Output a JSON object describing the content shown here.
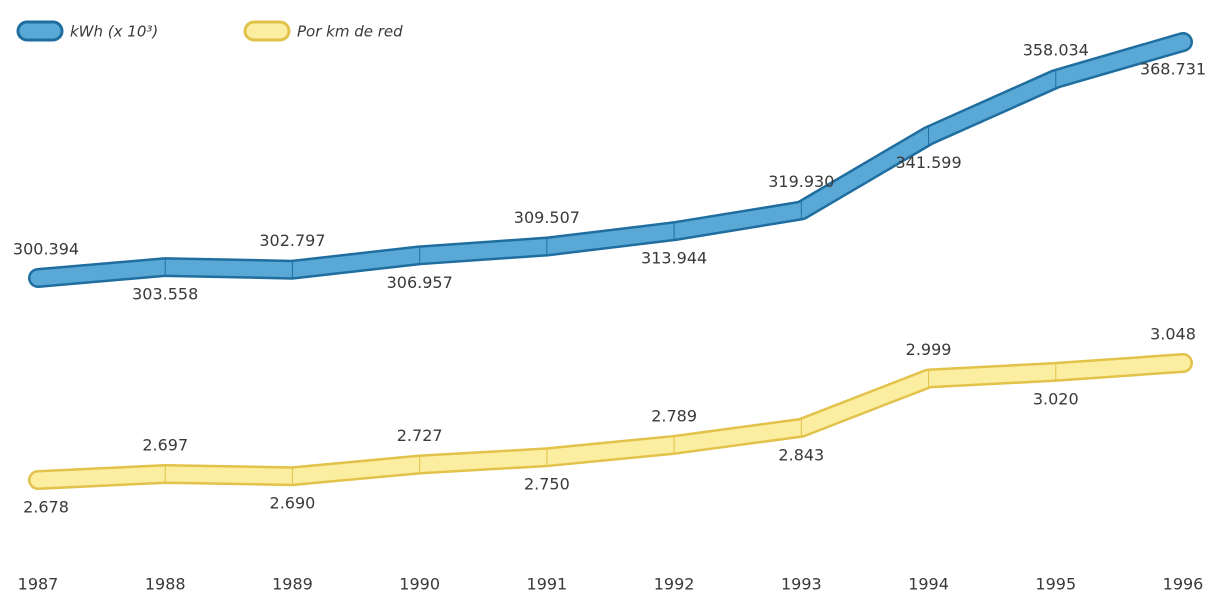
{
  "chart_data": {
    "type": "line",
    "categories": [
      "1987",
      "1988",
      "1989",
      "1990",
      "1991",
      "1992",
      "1993",
      "1994",
      "1995",
      "1996"
    ],
    "series": [
      {
        "name": "kWh (x 10³)",
        "color": "#5aa8d6",
        "values": [
          300394,
          303558,
          302797,
          306957,
          309507,
          313944,
          319930,
          341599,
          358034,
          368731
        ],
        "value_labels": [
          "300.394",
          "303.558",
          "302.797",
          "306.957",
          "309.507",
          "313.944",
          "319.930",
          "341.599",
          "358.034",
          "368.731"
        ]
      },
      {
        "name": "Por km de red",
        "color": "#fbeea0",
        "values": [
          2678,
          2697,
          2690,
          2727,
          2750,
          2789,
          2843,
          2999,
          3020,
          3048
        ],
        "value_labels": [
          "2.678",
          "2.697",
          "2.690",
          "2.727",
          "2.750",
          "2.789",
          "2.843",
          "2.999",
          "3.020",
          "3.048"
        ]
      }
    ]
  }
}
